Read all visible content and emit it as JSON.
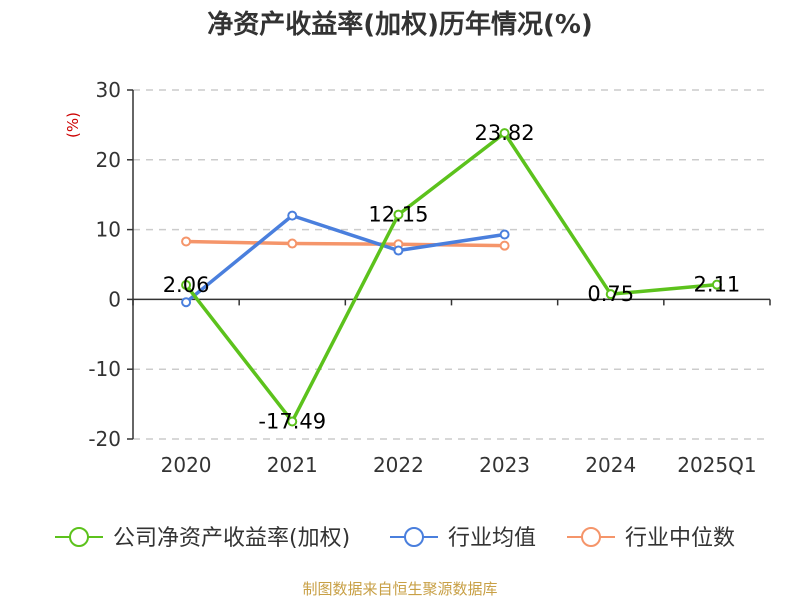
{
  "chart_data": {
    "type": "line",
    "title": "净资产收益率(加权)历年情况(%)",
    "ylabel": "(%)",
    "xlabel": "",
    "categories": [
      "2020",
      "2021",
      "2022",
      "2023",
      "2024",
      "2025Q1"
    ],
    "ylim": [
      -20,
      30
    ],
    "yticks": [
      -20,
      -10,
      0,
      10,
      20,
      30
    ],
    "grid": "horizontal-dashed",
    "legend_position": "bottom",
    "series": [
      {
        "name": "公司净资产收益率(加权)",
        "color": "#5cc21c",
        "values": [
          2.06,
          -17.49,
          12.15,
          23.82,
          0.75,
          2.11
        ],
        "labels": [
          "2.06",
          "-17.49",
          "12.15",
          "23.82",
          "0.75",
          "2.11"
        ]
      },
      {
        "name": "行业均值",
        "color": "#4a7fdd",
        "values": [
          -0.4,
          12.0,
          7.0,
          9.3,
          null,
          null
        ]
      },
      {
        "name": "行业中位数",
        "color": "#f5956a",
        "values": [
          8.3,
          8.0,
          7.9,
          7.7,
          null,
          null
        ]
      }
    ]
  },
  "source_note": "制图数据来自恒生聚源数据库"
}
